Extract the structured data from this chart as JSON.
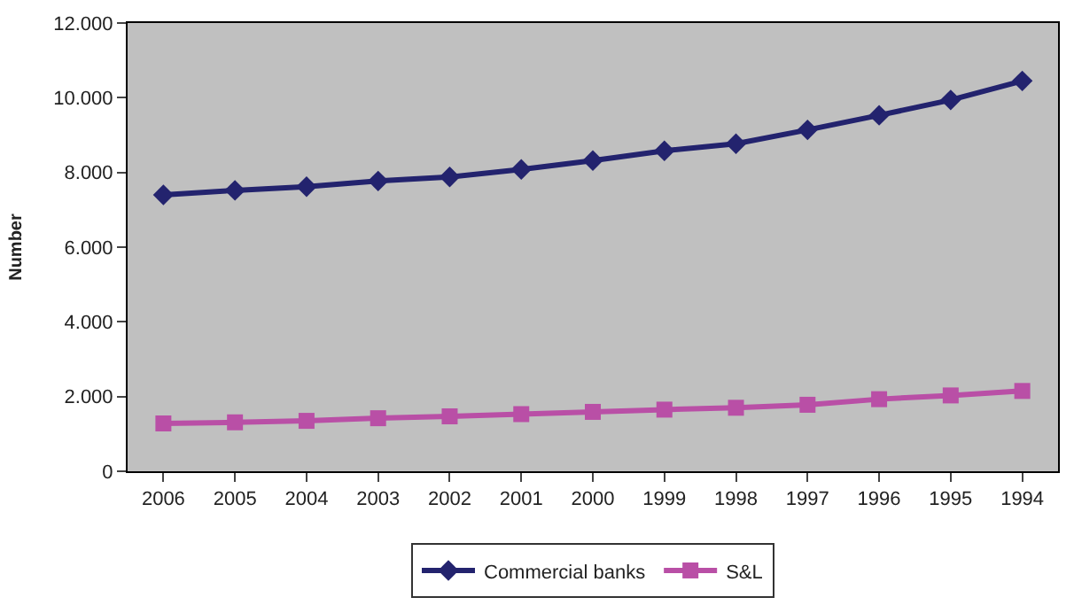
{
  "chart_data": {
    "type": "line",
    "ylabel": "Number",
    "categories": [
      "2006",
      "2005",
      "2004",
      "2003",
      "2002",
      "2001",
      "2000",
      "1999",
      "1998",
      "1997",
      "1996",
      "1995",
      "1994"
    ],
    "series": [
      {
        "name": "Commercial banks",
        "color": "#23236e",
        "marker": "diamond",
        "values": [
          7400,
          7520,
          7620,
          7770,
          7880,
          8080,
          8320,
          8580,
          8770,
          9140,
          9530,
          9940,
          10450
        ]
      },
      {
        "name": "S&L",
        "color": "#b94fa6",
        "marker": "square",
        "values": [
          1280,
          1310,
          1350,
          1420,
          1470,
          1530,
          1590,
          1650,
          1700,
          1780,
          1930,
          2030,
          2150
        ]
      }
    ],
    "ylim": [
      0,
      12000
    ],
    "yticks": [
      0,
      {
        "value": 2000,
        "label": "2.000"
      },
      {
        "value": 4000,
        "label": "4.000"
      },
      {
        "value": 6000,
        "label": "6.000"
      },
      {
        "value": 8000,
        "label": "8.000"
      },
      {
        "value": 10000,
        "label": "10.000"
      },
      {
        "value": 12000,
        "label": "12.000"
      }
    ],
    "grid": false,
    "legend": "bottom"
  }
}
